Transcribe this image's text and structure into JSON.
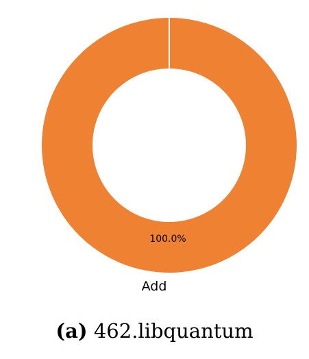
{
  "chart_data": {
    "type": "pie",
    "style": "donut",
    "categories": [
      "Add"
    ],
    "values": [
      100.0
    ],
    "value_labels": [
      "100.0%"
    ],
    "colors": [
      "#EF8133"
    ],
    "title": "",
    "legend": "none"
  },
  "caption": {
    "tag": "(a)",
    "text": "462.libquantum"
  }
}
